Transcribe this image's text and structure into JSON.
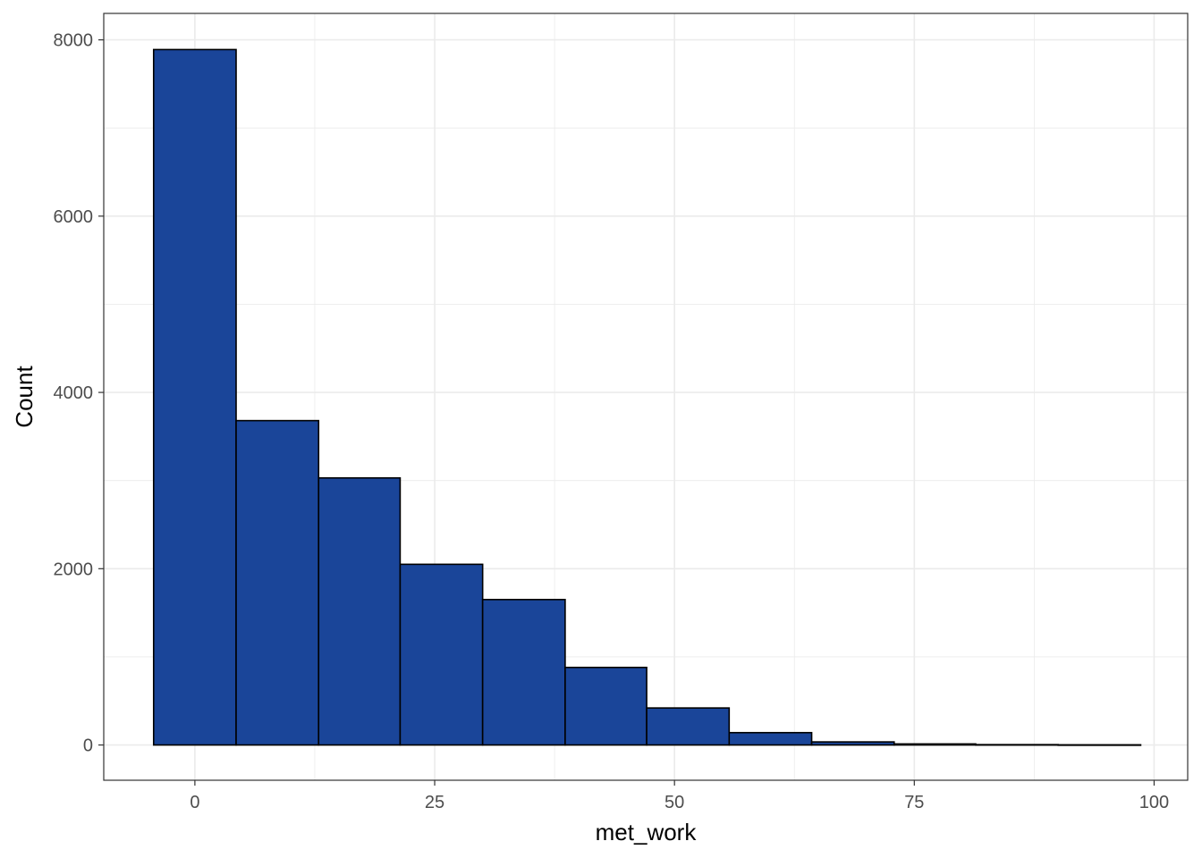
{
  "chart_data": {
    "type": "bar",
    "subtype": "histogram",
    "title": "",
    "xlabel": "met_work",
    "ylabel": "Count",
    "xlim": [
      -9.5,
      103.5
    ],
    "ylim": [
      -400,
      8300
    ],
    "x_ticks": [
      0,
      25,
      50,
      75,
      100
    ],
    "y_ticks": [
      0,
      2000,
      4000,
      6000,
      8000
    ],
    "grid": true,
    "bins": [
      {
        "x0": -4.3,
        "x1": 4.3,
        "count": 7890
      },
      {
        "x0": 4.3,
        "x1": 12.9,
        "count": 3680
      },
      {
        "x0": 12.9,
        "x1": 21.4,
        "count": 3030
      },
      {
        "x0": 21.4,
        "x1": 30.0,
        "count": 2050
      },
      {
        "x0": 30.0,
        "x1": 38.6,
        "count": 1650
      },
      {
        "x0": 38.6,
        "x1": 47.1,
        "count": 880
      },
      {
        "x0": 47.1,
        "x1": 55.7,
        "count": 420
      },
      {
        "x0": 55.7,
        "x1": 64.3,
        "count": 140
      },
      {
        "x0": 64.3,
        "x1": 72.9,
        "count": 35
      },
      {
        "x0": 72.9,
        "x1": 81.4,
        "count": 12
      },
      {
        "x0": 81.4,
        "x1": 90.0,
        "count": 4
      },
      {
        "x0": 90.0,
        "x1": 98.6,
        "count": 2
      }
    ],
    "colors": {
      "fill": "#1a4599",
      "outline": "#000000",
      "grid": "#ebebeb",
      "panel_border": "#333333"
    }
  }
}
